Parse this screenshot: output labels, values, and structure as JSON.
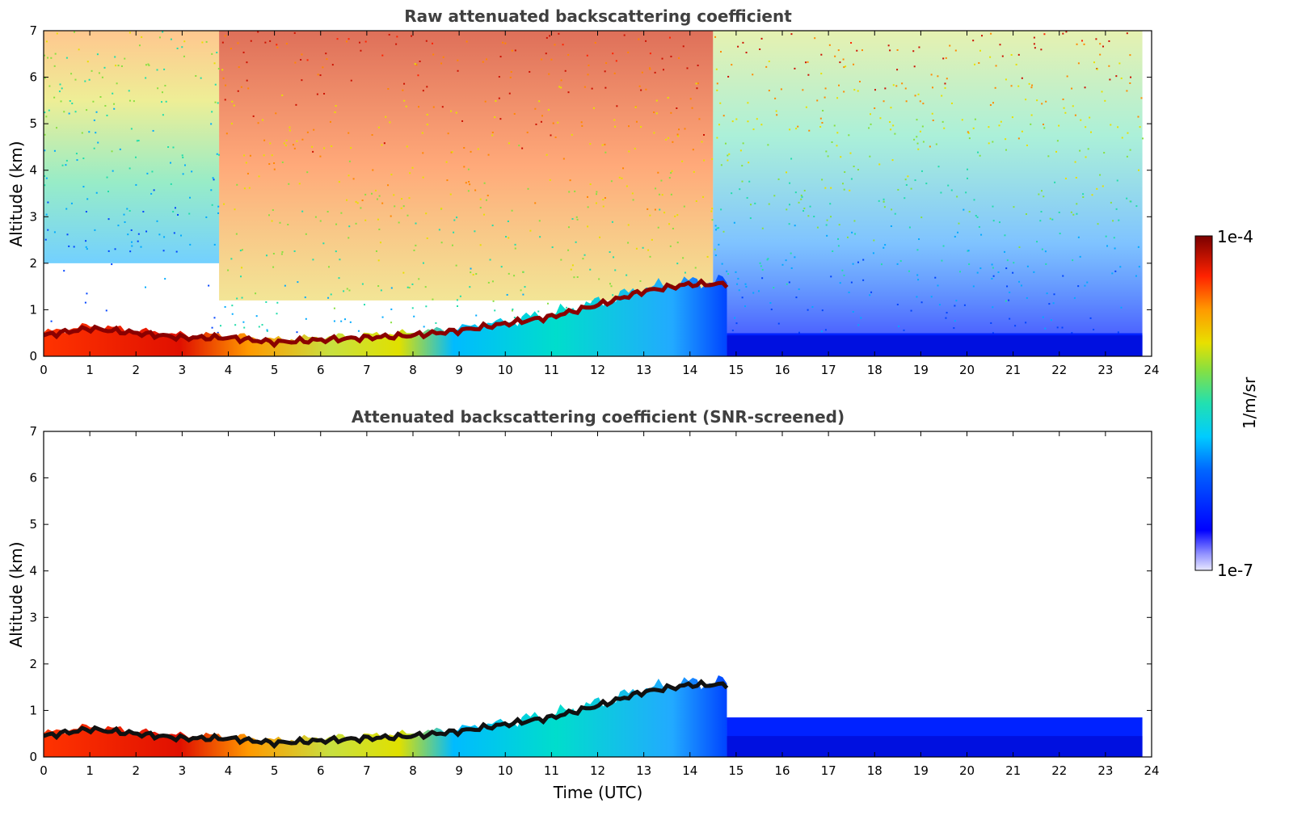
{
  "chart_data": [
    {
      "type": "heatmap",
      "title": "Raw attenuated backscattering coefficient",
      "ylabel": "Altitude (km)",
      "xlabel": "",
      "xlim": [
        0,
        24
      ],
      "ylim": [
        0,
        7
      ],
      "xticks": [
        0,
        1,
        2,
        3,
        4,
        5,
        6,
        7,
        8,
        9,
        10,
        11,
        12,
        13,
        14,
        15,
        16,
        17,
        18,
        19,
        20,
        21,
        22,
        23,
        24
      ],
      "yticks": [
        0,
        1,
        2,
        3,
        4,
        5,
        6,
        7
      ],
      "data_end_time": 23.8,
      "boundary_layer_top_km": {
        "time": [
          0,
          1,
          2,
          3,
          4,
          5,
          6,
          7,
          8,
          9,
          10,
          11,
          12,
          13,
          14,
          14.8
        ],
        "altitude": [
          0.45,
          0.6,
          0.5,
          0.4,
          0.4,
          0.3,
          0.35,
          0.4,
          0.45,
          0.55,
          0.7,
          0.85,
          1.1,
          1.4,
          1.55,
          1.55
        ]
      }
    },
    {
      "type": "heatmap",
      "title": "Attenuated backscattering coefficient (SNR-screened)",
      "ylabel": "Altitude (km)",
      "xlabel": "Time (UTC)",
      "xlim": [
        0,
        24
      ],
      "ylim": [
        0,
        7
      ],
      "xticks": [
        0,
        1,
        2,
        3,
        4,
        5,
        6,
        7,
        8,
        9,
        10,
        11,
        12,
        13,
        14,
        15,
        16,
        17,
        18,
        19,
        20,
        21,
        22,
        23,
        24
      ],
      "yticks": [
        0,
        1,
        2,
        3,
        4,
        5,
        6,
        7
      ],
      "data_end_time": 23.8,
      "boundary_layer_top_km": {
        "time": [
          0,
          1,
          2,
          3,
          4,
          5,
          6,
          7,
          8,
          9,
          10,
          11,
          12,
          13,
          14,
          14.8
        ],
        "altitude": [
          0.45,
          0.6,
          0.5,
          0.4,
          0.4,
          0.3,
          0.35,
          0.4,
          0.45,
          0.55,
          0.7,
          0.85,
          1.1,
          1.4,
          1.55,
          1.55
        ]
      }
    }
  ],
  "colorbar": {
    "label": "1/m/sr",
    "max_label": "1e-4",
    "min_label": "1e-7",
    "scale": "log",
    "colormap": "jet"
  }
}
